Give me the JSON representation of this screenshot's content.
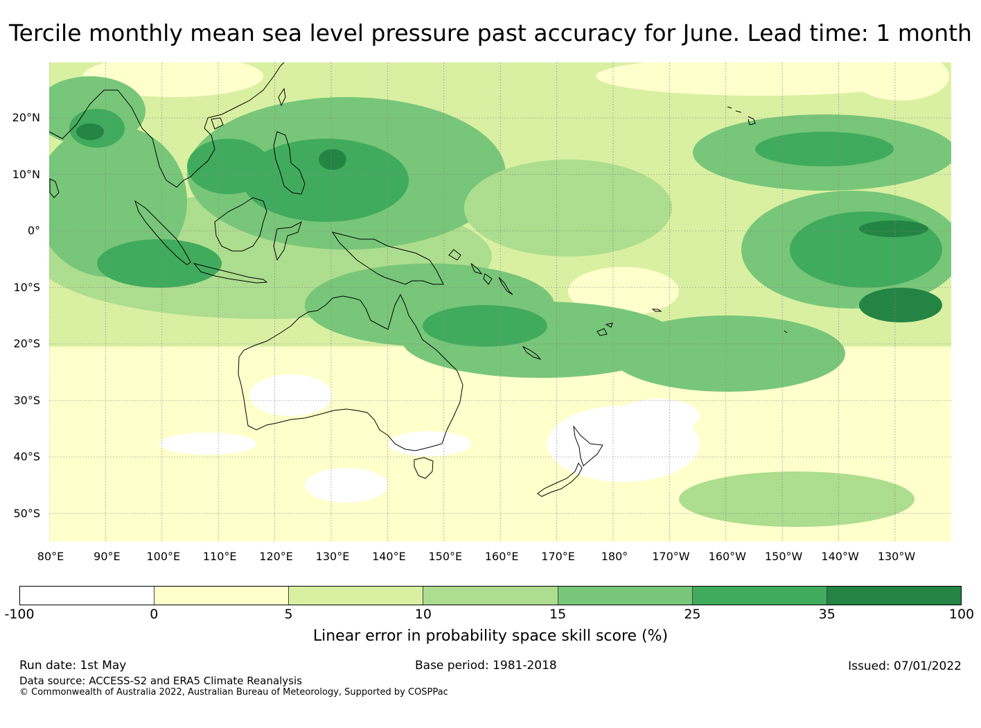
{
  "title": "Tercile monthly mean sea level pressure past accuracy for June. Lead time: 1 month",
  "map": {
    "lon_range": [
      "80°E",
      "120°W"
    ],
    "lat_range": [
      "30°N",
      "55°S"
    ],
    "lat_labels": [
      "20°N",
      "10°N",
      "0°",
      "10°S",
      "20°S",
      "30°S",
      "40°S",
      "50°S"
    ],
    "lon_labels": [
      "80°E",
      "90°E",
      "100°E",
      "110°E",
      "120°E",
      "130°E",
      "140°E",
      "150°E",
      "160°E",
      "170°E",
      "180°",
      "170°W",
      "160°W",
      "150°W",
      "140°W",
      "130°W"
    ],
    "gridlines": true
  },
  "colorbar": {
    "label": "Linear error in probability space skill score (%)",
    "ticks": [
      "-100",
      "0",
      "5",
      "10",
      "15",
      "25",
      "35",
      "100"
    ],
    "colors": [
      "#ffffff",
      "#ffffcc",
      "#d9f0a3",
      "#addd8e",
      "#78c679",
      "#41ab5d",
      "#238443"
    ]
  },
  "footer": {
    "run_date": "Run date: 1st May",
    "base_period": "Base period: 1981-2018",
    "issued": "Issued: 07/01/2022",
    "data_source": "Data source: ACCESS-S2 and ERA5 Climate Reanalysis",
    "copyright": "© Commonwealth of Australia 2022, Australian Bureau of Meteorology, Supported by COSPPac"
  }
}
